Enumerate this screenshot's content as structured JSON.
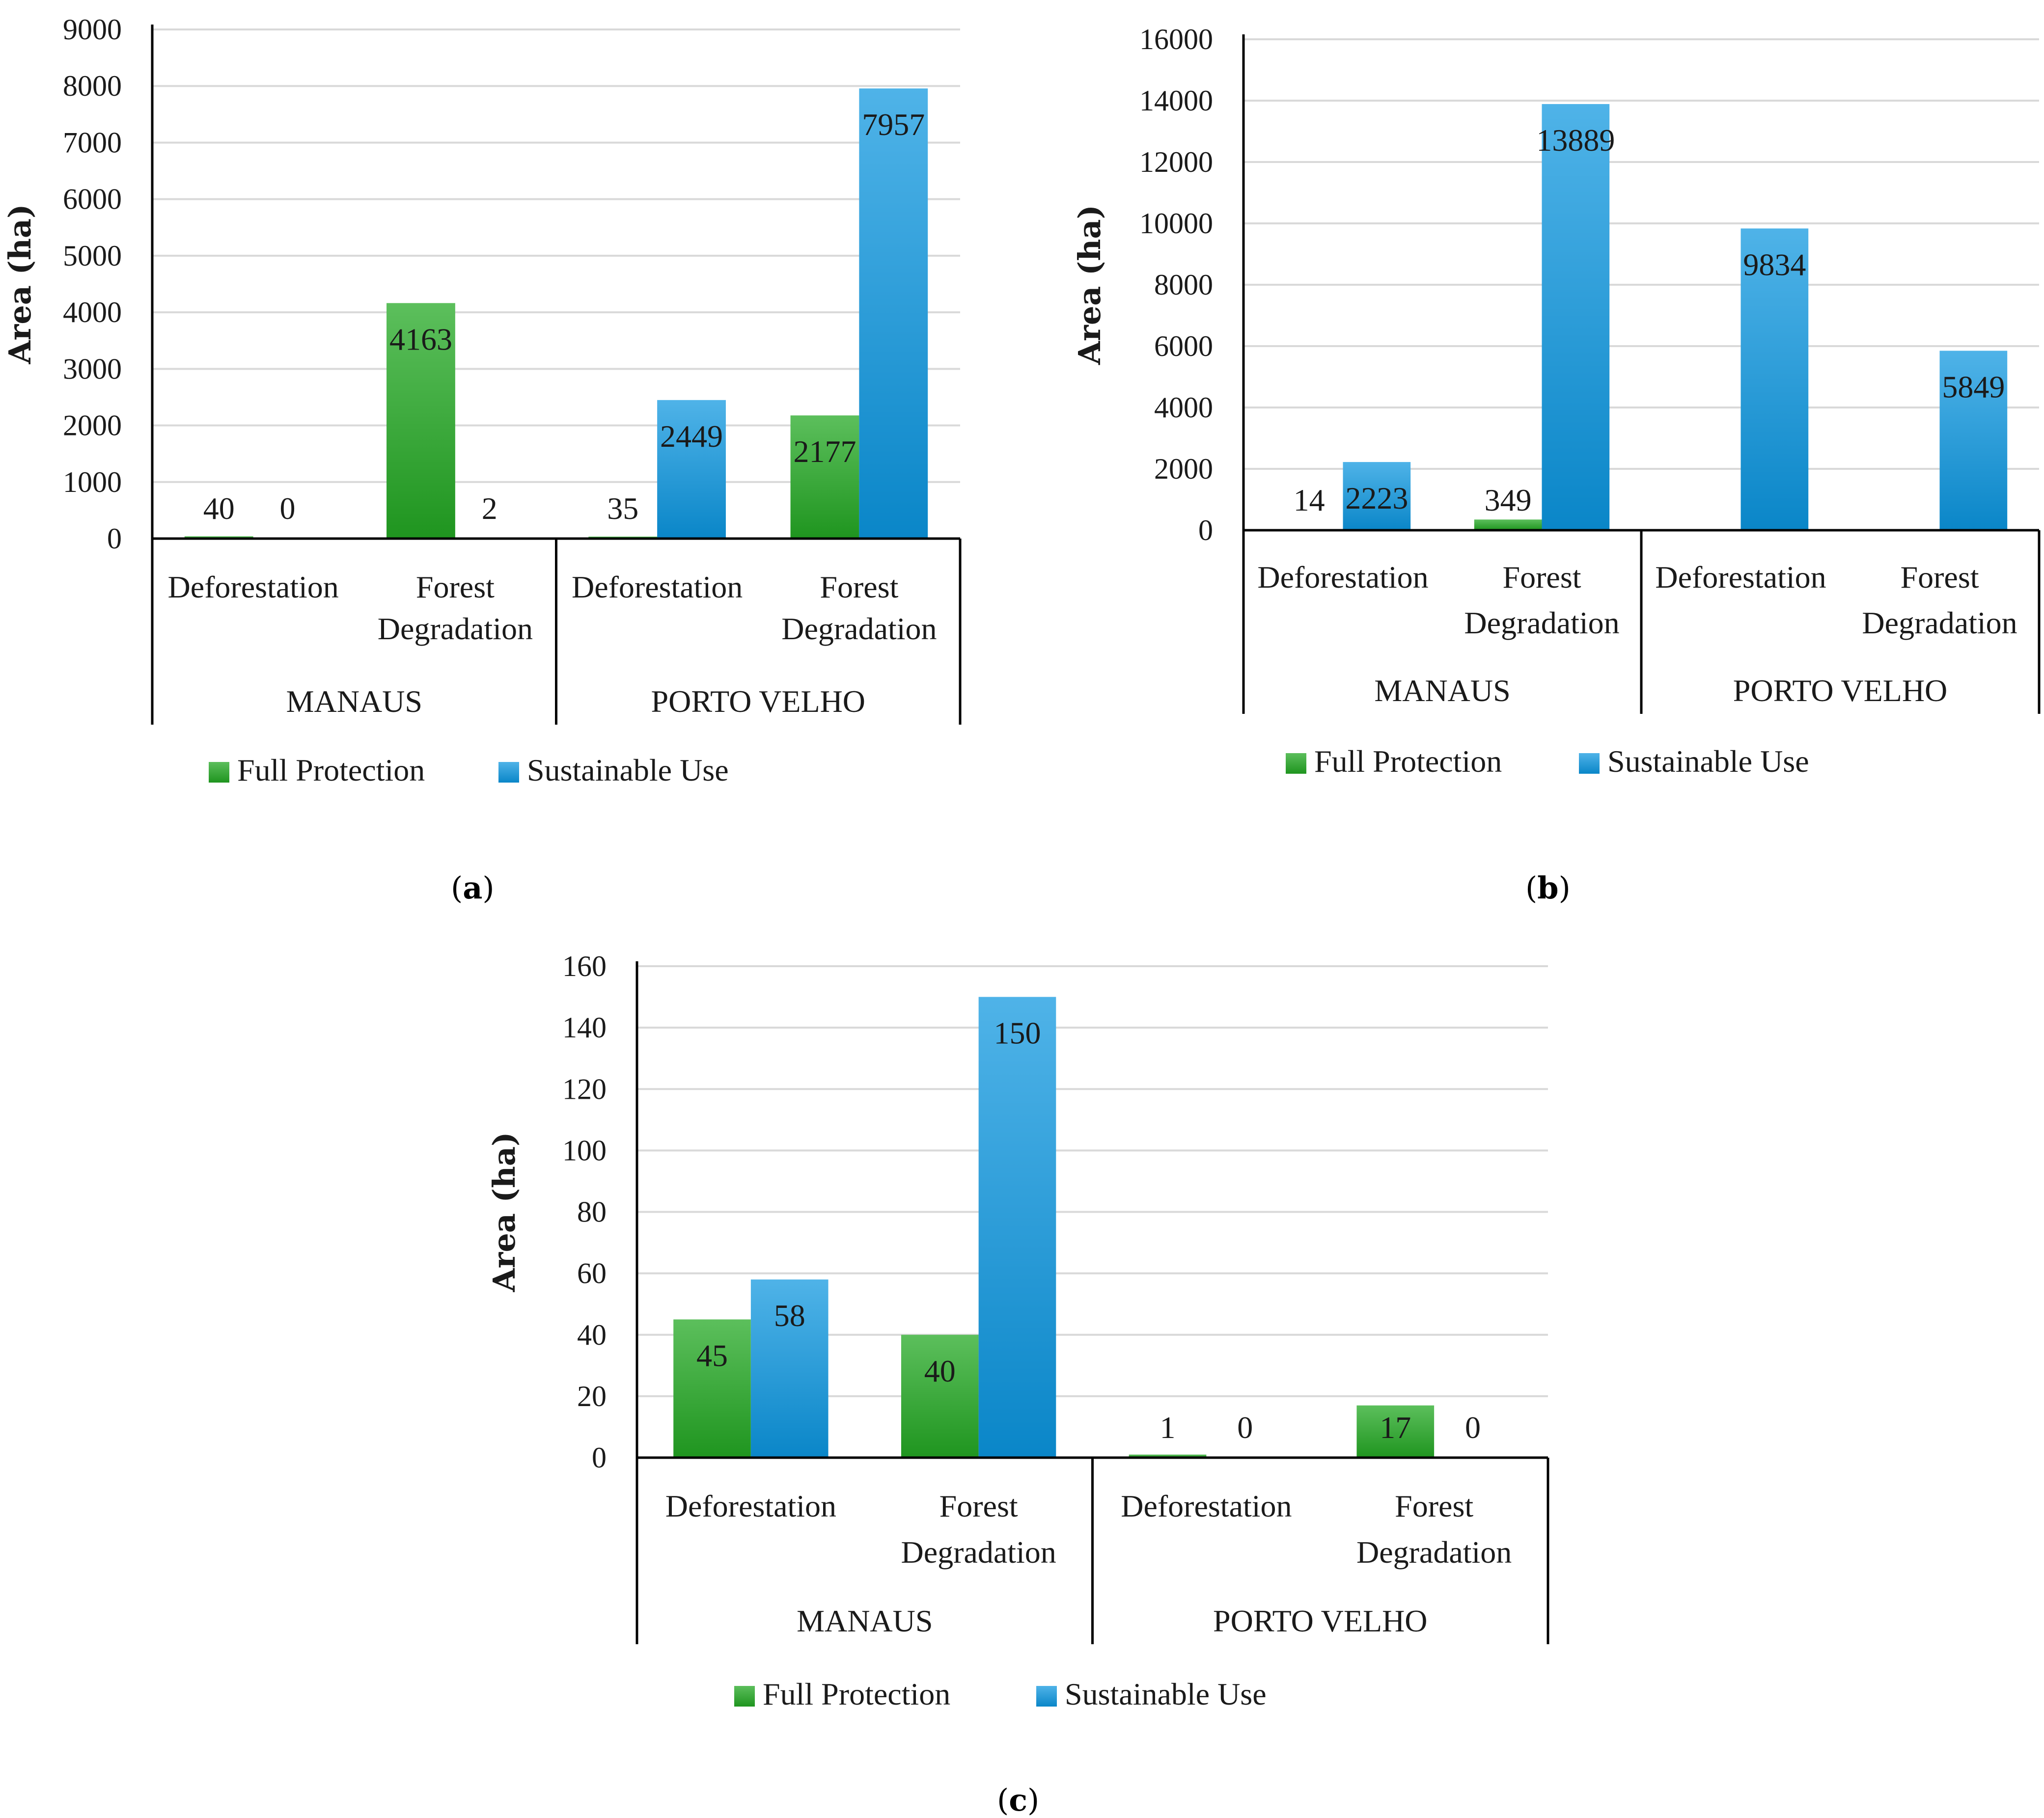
{
  "colors": {
    "full_protection": "#3aaa3a",
    "full_protection_dark": "#1f951f",
    "sustainable_use": "#20a4e4",
    "sustainable_use_dark": "#0a86c8",
    "grid": "#d9d9d9",
    "axis": "#000000",
    "text": "#1a1a1a"
  },
  "legend": [
    "Full Protection",
    "Sustainable Use"
  ],
  "captions": [
    "a",
    "b",
    "c"
  ],
  "chart_data": [
    {
      "type": "bar",
      "panel": "a",
      "ylabel": "Area (ha)",
      "ylim": [
        0,
        9000
      ],
      "yticks": [
        0,
        1000,
        2000,
        3000,
        4000,
        5000,
        6000,
        7000,
        8000,
        9000
      ],
      "groups": [
        "MANAUS",
        "PORTO VELHO"
      ],
      "categories": [
        [
          "Deforestation"
        ],
        [
          "Forest",
          "Degradation"
        ],
        [
          "Deforestation"
        ],
        [
          "Forest",
          "Degradation"
        ]
      ],
      "series": [
        {
          "name": "Full Protection",
          "values": [
            40,
            4163,
            35,
            2177
          ]
        },
        {
          "name": "Sustainable Use",
          "values": [
            0,
            2,
            2449,
            7957
          ]
        }
      ]
    },
    {
      "type": "bar",
      "panel": "b",
      "ylabel": "Area (ha)",
      "ylim": [
        0,
        16000
      ],
      "yticks": [
        0,
        2000,
        4000,
        6000,
        8000,
        10000,
        12000,
        14000,
        16000
      ],
      "groups": [
        "MANAUS",
        "PORTO VELHO"
      ],
      "categories": [
        [
          "Deforestation"
        ],
        [
          "Forest",
          "Degradation"
        ],
        [
          "Deforestation"
        ],
        [
          "Forest",
          "Degradation"
        ]
      ],
      "series": [
        {
          "name": "Full Protection",
          "values": [
            14,
            349,
            null,
            null
          ]
        },
        {
          "name": "Sustainable Use",
          "values": [
            2223,
            13889,
            9834,
            5849
          ]
        }
      ]
    },
    {
      "type": "bar",
      "panel": "c",
      "ylabel": "Area (ha)",
      "ylim": [
        0,
        160
      ],
      "yticks": [
        0,
        20,
        40,
        60,
        80,
        100,
        120,
        140,
        160
      ],
      "groups": [
        "MANAUS",
        "PORTO VELHO"
      ],
      "categories": [
        [
          "Deforestation"
        ],
        [
          "Forest",
          "Degradation"
        ],
        [
          "Deforestation"
        ],
        [
          "Forest",
          "Degradation"
        ]
      ],
      "series": [
        {
          "name": "Full Protection",
          "values": [
            45,
            40,
            1,
            17
          ]
        },
        {
          "name": "Sustainable Use",
          "values": [
            58,
            150,
            0,
            0
          ]
        }
      ]
    }
  ]
}
